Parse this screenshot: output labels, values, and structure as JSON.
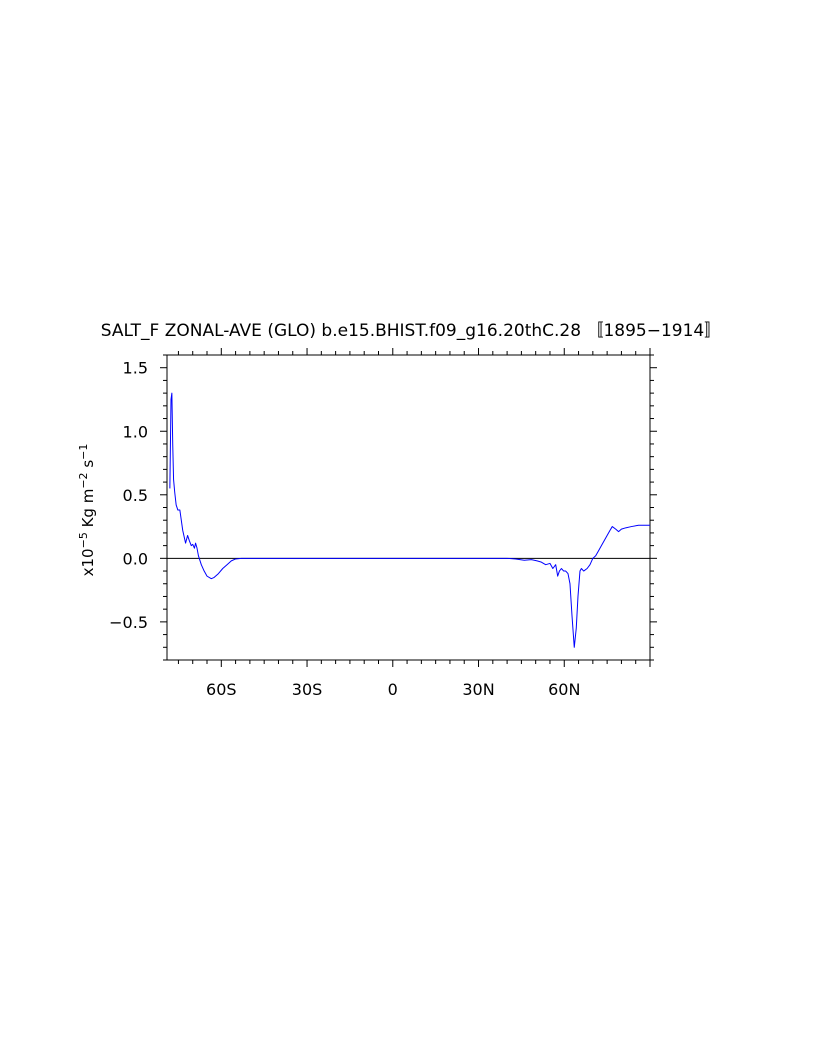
{
  "chart_data": {
    "type": "line",
    "title": "SALT_F ZONAL-AVE (GLO) b.e15.BHIST.f09_g16.20thC.28 〚1895−1914〛",
    "ylabel": {
      "prefix": "x10",
      "exp1": "−5",
      "mid1": " Kg m",
      "exp2": "−2",
      "mid2": " s",
      "exp3": "−1"
    },
    "xlabel": "",
    "xlim": [
      -79,
      90
    ],
    "ylim": [
      -0.8,
      1.6
    ],
    "x_ticks": [
      {
        "value": -60,
        "label": "60S"
      },
      {
        "value": -30,
        "label": "30S"
      },
      {
        "value": 0,
        "label": "0"
      },
      {
        "value": 30,
        "label": "30N"
      },
      {
        "value": 60,
        "label": "60N"
      }
    ],
    "y_ticks": [
      {
        "value": -0.5,
        "label": "−0.5"
      },
      {
        "value": 0.0,
        "label": "0.0"
      },
      {
        "value": 0.5,
        "label": "0.5"
      },
      {
        "value": 1.0,
        "label": "1.0"
      },
      {
        "value": 1.5,
        "label": "1.5"
      }
    ],
    "zero_line": true,
    "grid": false,
    "series_color": "#0000ff",
    "zero_line_color": "#000000",
    "series": [
      {
        "values": [
          [
            -78.0,
            0.55
          ],
          [
            -77.6,
            1.25
          ],
          [
            -77.3,
            1.3
          ],
          [
            -77.0,
            0.9
          ],
          [
            -76.7,
            0.62
          ],
          [
            -76.3,
            0.52
          ],
          [
            -75.8,
            0.42
          ],
          [
            -75.2,
            0.38
          ],
          [
            -74.5,
            0.38
          ],
          [
            -74.0,
            0.3
          ],
          [
            -73.5,
            0.22
          ],
          [
            -72.5,
            0.12
          ],
          [
            -71.8,
            0.18
          ],
          [
            -71.2,
            0.14
          ],
          [
            -70.5,
            0.1
          ],
          [
            -70.0,
            0.11
          ],
          [
            -69.4,
            0.08
          ],
          [
            -69.0,
            0.12
          ],
          [
            -68.5,
            0.08
          ],
          [
            -68.0,
            0.02
          ],
          [
            -67.0,
            -0.05
          ],
          [
            -66.0,
            -0.1
          ],
          [
            -65.0,
            -0.14
          ],
          [
            -63.5,
            -0.16
          ],
          [
            -62.5,
            -0.15
          ],
          [
            -61.0,
            -0.12
          ],
          [
            -59.5,
            -0.08
          ],
          [
            -58.0,
            -0.05
          ],
          [
            -56.5,
            -0.02
          ],
          [
            -55.0,
            -0.005
          ],
          [
            -53.0,
            0.0
          ],
          [
            -40.0,
            0.0
          ],
          [
            0.0,
            0.0
          ],
          [
            30.0,
            0.0
          ],
          [
            40.0,
            0.0
          ],
          [
            43.0,
            -0.005
          ],
          [
            46.0,
            -0.015
          ],
          [
            48.5,
            -0.01
          ],
          [
            50.5,
            -0.02
          ],
          [
            52.0,
            -0.03
          ],
          [
            53.5,
            -0.05
          ],
          [
            55.0,
            -0.04
          ],
          [
            56.0,
            -0.08
          ],
          [
            57.0,
            -0.05
          ],
          [
            57.7,
            -0.14
          ],
          [
            58.3,
            -0.1
          ],
          [
            59.0,
            -0.08
          ],
          [
            59.8,
            -0.1
          ],
          [
            60.5,
            -0.1
          ],
          [
            61.3,
            -0.12
          ],
          [
            62.0,
            -0.2
          ],
          [
            62.7,
            -0.45
          ],
          [
            63.5,
            -0.7
          ],
          [
            64.2,
            -0.55
          ],
          [
            64.8,
            -0.3
          ],
          [
            65.5,
            -0.1
          ],
          [
            66.0,
            -0.08
          ],
          [
            66.8,
            -0.1
          ],
          [
            68.0,
            -0.08
          ],
          [
            69.0,
            -0.05
          ],
          [
            70.0,
            0.0
          ],
          [
            71.0,
            0.02
          ],
          [
            72.0,
            0.06
          ],
          [
            73.0,
            0.1
          ],
          [
            74.5,
            0.16
          ],
          [
            76.0,
            0.22
          ],
          [
            76.8,
            0.25
          ],
          [
            78.0,
            0.23
          ],
          [
            79.0,
            0.21
          ],
          [
            80.0,
            0.23
          ],
          [
            81.5,
            0.24
          ],
          [
            83.5,
            0.25
          ],
          [
            86.0,
            0.26
          ],
          [
            88.5,
            0.26
          ],
          [
            90.0,
            0.26
          ]
        ]
      }
    ]
  }
}
